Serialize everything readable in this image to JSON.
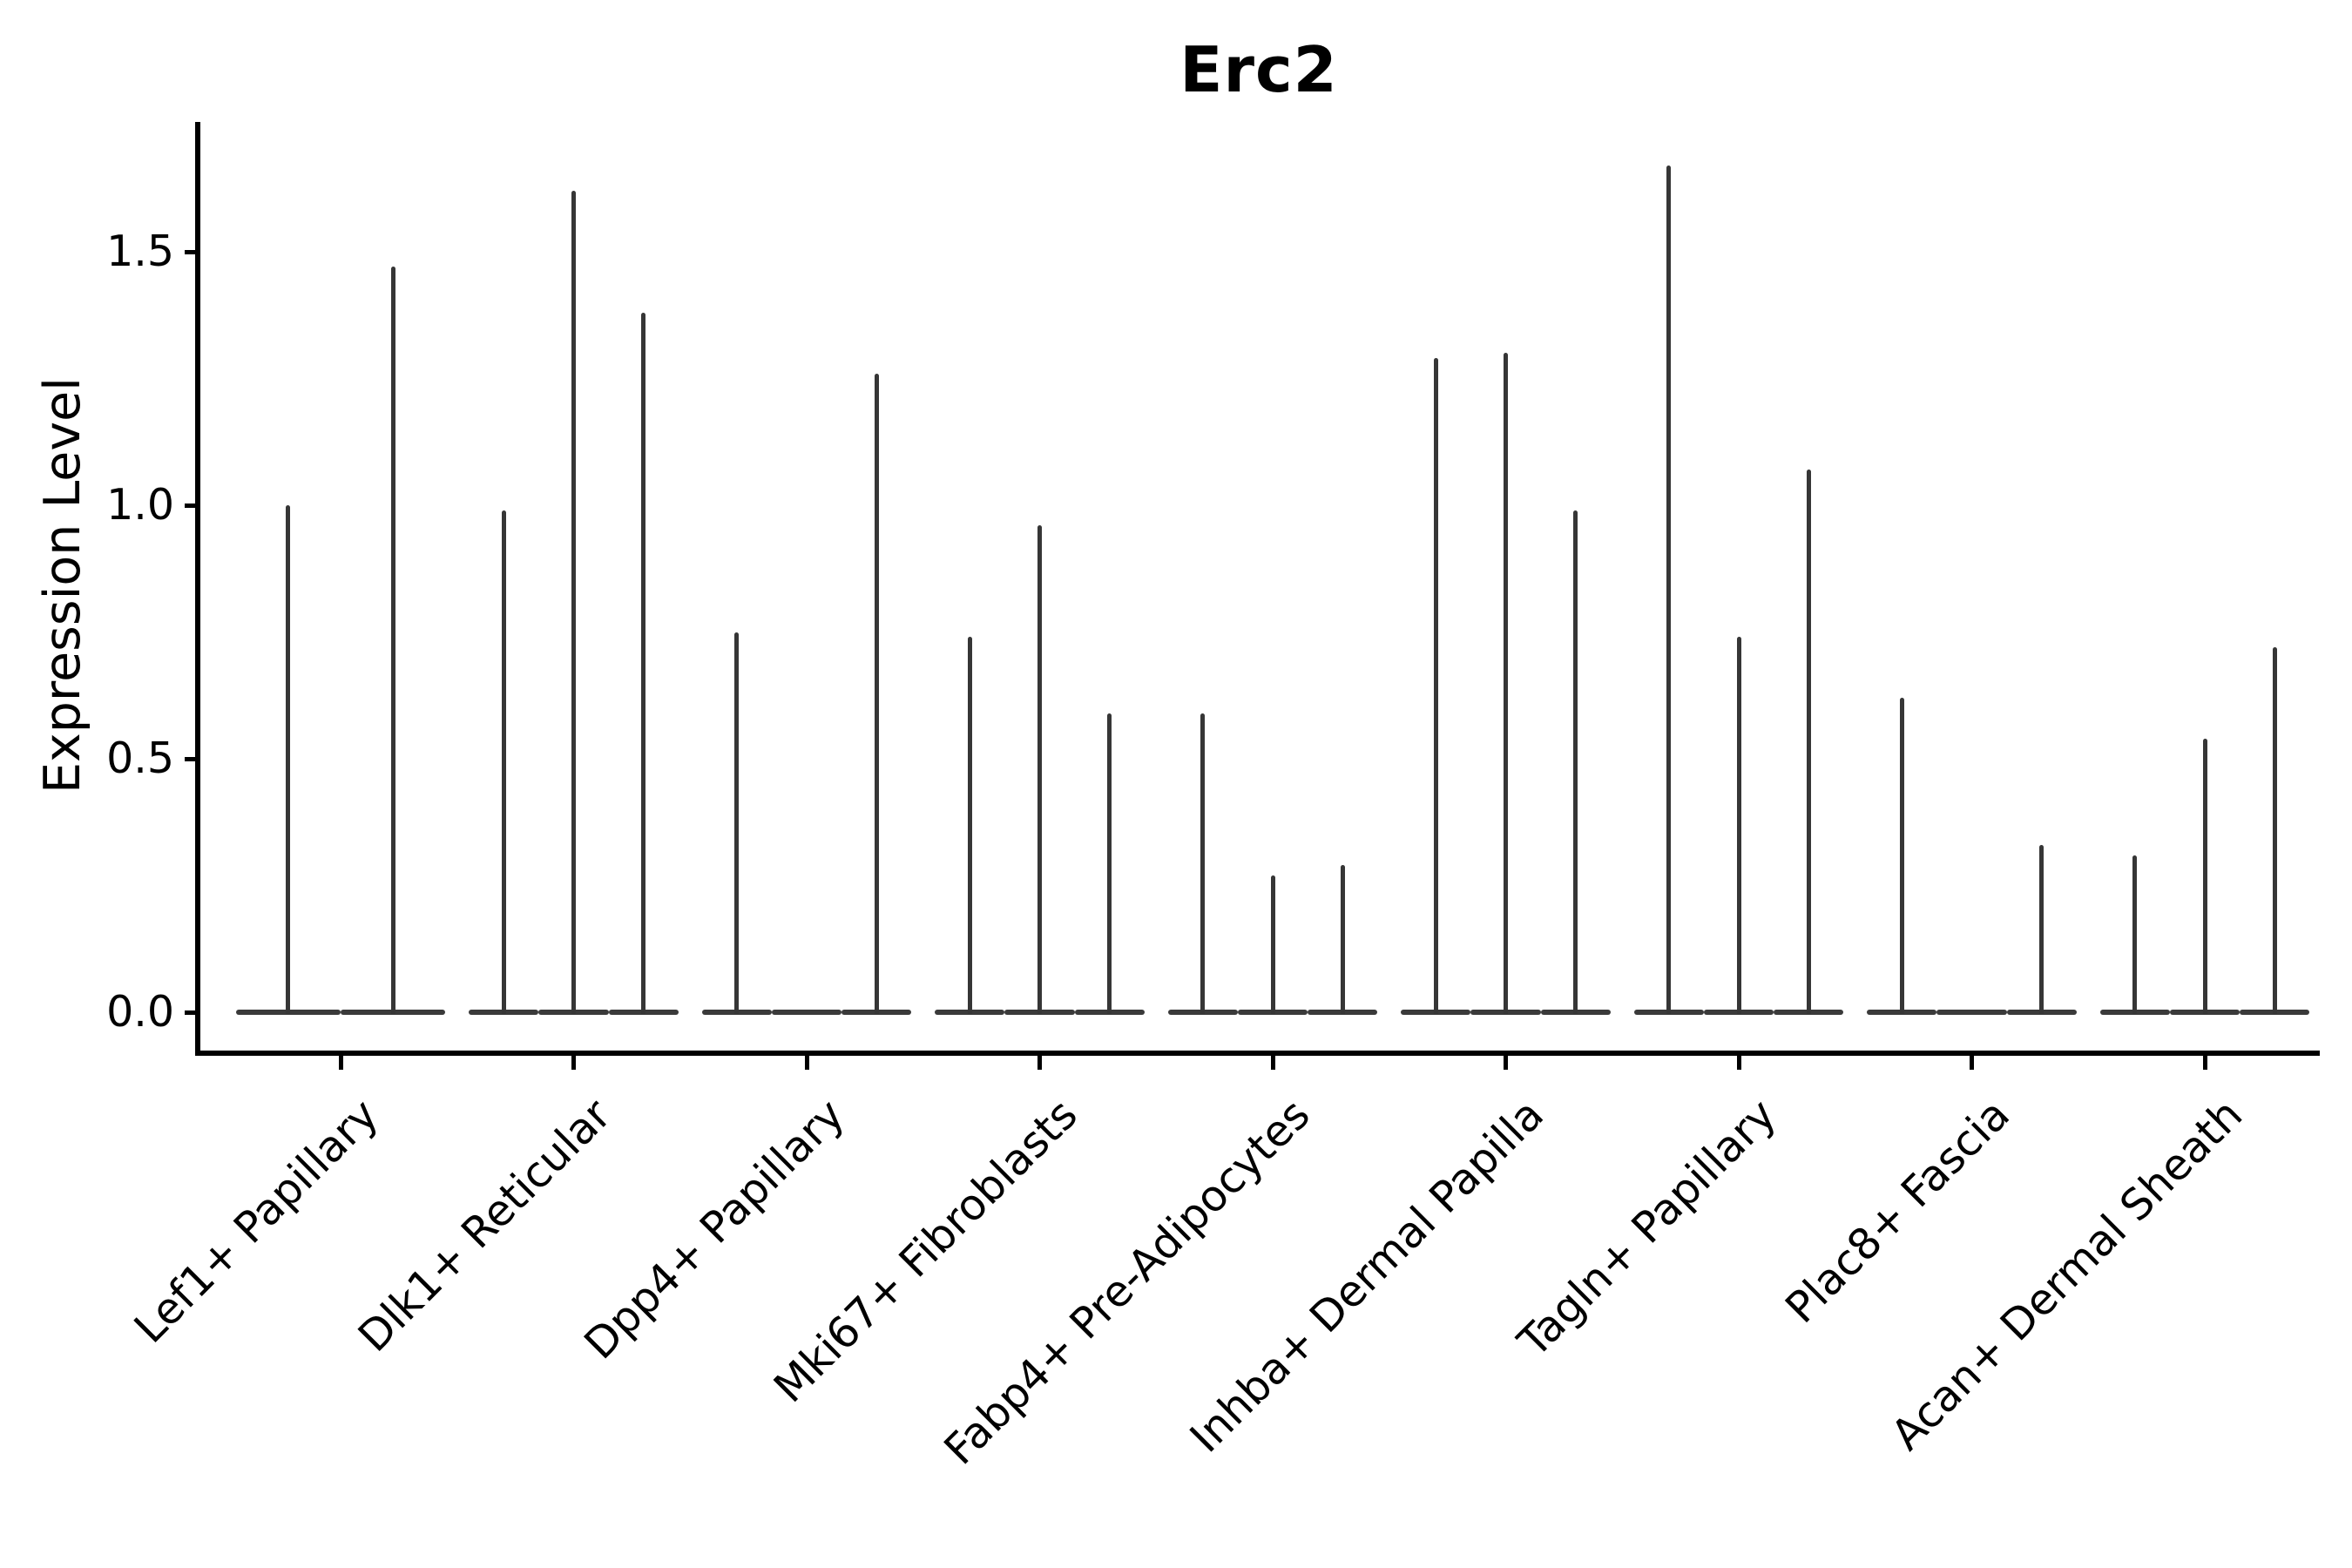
{
  "title": "Erc2",
  "ylabel": "Expression Level",
  "chart_data": {
    "type": "violin",
    "title": "Erc2",
    "xlabel": "",
    "ylabel": "Expression Level",
    "ylim": [
      -0.08,
      1.76
    ],
    "yticks": [
      {
        "label": "0.0",
        "value": 0.0
      },
      {
        "label": "0.5",
        "value": 0.5
      },
      {
        "label": "1.0",
        "value": 1.0
      },
      {
        "label": "1.5",
        "value": 1.5
      }
    ],
    "grid": false,
    "legend": "none",
    "description": "Stacked violin plot of Erc2 expression; each cluster holds 2-3 very thin spike-shaped violins (wide flat base at 0, thin spike to max expression).",
    "categories": [
      "Lef1+ Papillary",
      "Dlk1+ Reticular",
      "Dpp4+ Papillary",
      "Mki67+ Fibroblasts",
      "Fabp4+ Pre-Adipocytes",
      "Inhba+ Dermal Papilla",
      "Tagln+ Papillary",
      "Plac8+ Fascia",
      "Acan+ Dermal Sheath"
    ],
    "groups": [
      {
        "category": "Lef1+ Papillary",
        "violins": [
          {
            "offset": -0.225,
            "width": 0.45,
            "max": 1.0
          },
          {
            "offset": 0.225,
            "width": 0.45,
            "max": 1.47
          }
        ]
      },
      {
        "category": "Dlk1+ Reticular",
        "violins": [
          {
            "offset": -0.3,
            "width": 0.3,
            "max": 0.99
          },
          {
            "offset": 0,
            "width": 0.3,
            "max": 1.62
          },
          {
            "offset": 0.3,
            "width": 0.3,
            "max": 1.38
          }
        ]
      },
      {
        "category": "Dpp4+ Papillary",
        "violins": [
          {
            "offset": -0.3,
            "width": 0.3,
            "max": 0.75
          },
          {
            "offset": 0,
            "width": 0.3,
            "max": 0.0
          },
          {
            "offset": 0.3,
            "width": 0.3,
            "max": 1.26
          }
        ]
      },
      {
        "category": "Mki67+ Fibroblasts",
        "violins": [
          {
            "offset": -0.3,
            "width": 0.3,
            "max": 0.74
          },
          {
            "offset": 0,
            "width": 0.3,
            "max": 0.96
          },
          {
            "offset": 0.3,
            "width": 0.3,
            "max": 0.59
          }
        ]
      },
      {
        "category": "Fabp4+ Pre-Adipocytes",
        "violins": [
          {
            "offset": -0.3,
            "width": 0.3,
            "max": 0.59
          },
          {
            "offset": 0,
            "width": 0.3,
            "max": 0.27
          },
          {
            "offset": 0.3,
            "width": 0.3,
            "max": 0.29
          }
        ]
      },
      {
        "category": "Inhba+ Dermal Papilla",
        "violins": [
          {
            "offset": -0.3,
            "width": 0.3,
            "max": 1.29
          },
          {
            "offset": 0,
            "width": 0.3,
            "max": 1.3
          },
          {
            "offset": 0.3,
            "width": 0.3,
            "max": 0.99
          }
        ]
      },
      {
        "category": "Tagln+ Papillary",
        "violins": [
          {
            "offset": -0.3,
            "width": 0.3,
            "max": 1.67
          },
          {
            "offset": 0,
            "width": 0.3,
            "max": 0.74
          },
          {
            "offset": 0.3,
            "width": 0.3,
            "max": 1.07
          }
        ]
      },
      {
        "category": "Plac8+ Fascia",
        "violins": [
          {
            "offset": -0.3,
            "width": 0.3,
            "max": 0.62
          },
          {
            "offset": 0,
            "width": 0.3,
            "max": 0.0
          },
          {
            "offset": 0.3,
            "width": 0.3,
            "max": 0.33
          }
        ]
      },
      {
        "category": "Acan+ Dermal Sheath",
        "violins": [
          {
            "offset": -0.3,
            "width": 0.3,
            "max": 0.31
          },
          {
            "offset": 0,
            "width": 0.3,
            "max": 0.54
          },
          {
            "offset": 0.3,
            "width": 0.3,
            "max": 0.72
          }
        ]
      }
    ],
    "colors": {
      "violin": "#363636",
      "axis": "#000000",
      "text": "#000000"
    }
  }
}
